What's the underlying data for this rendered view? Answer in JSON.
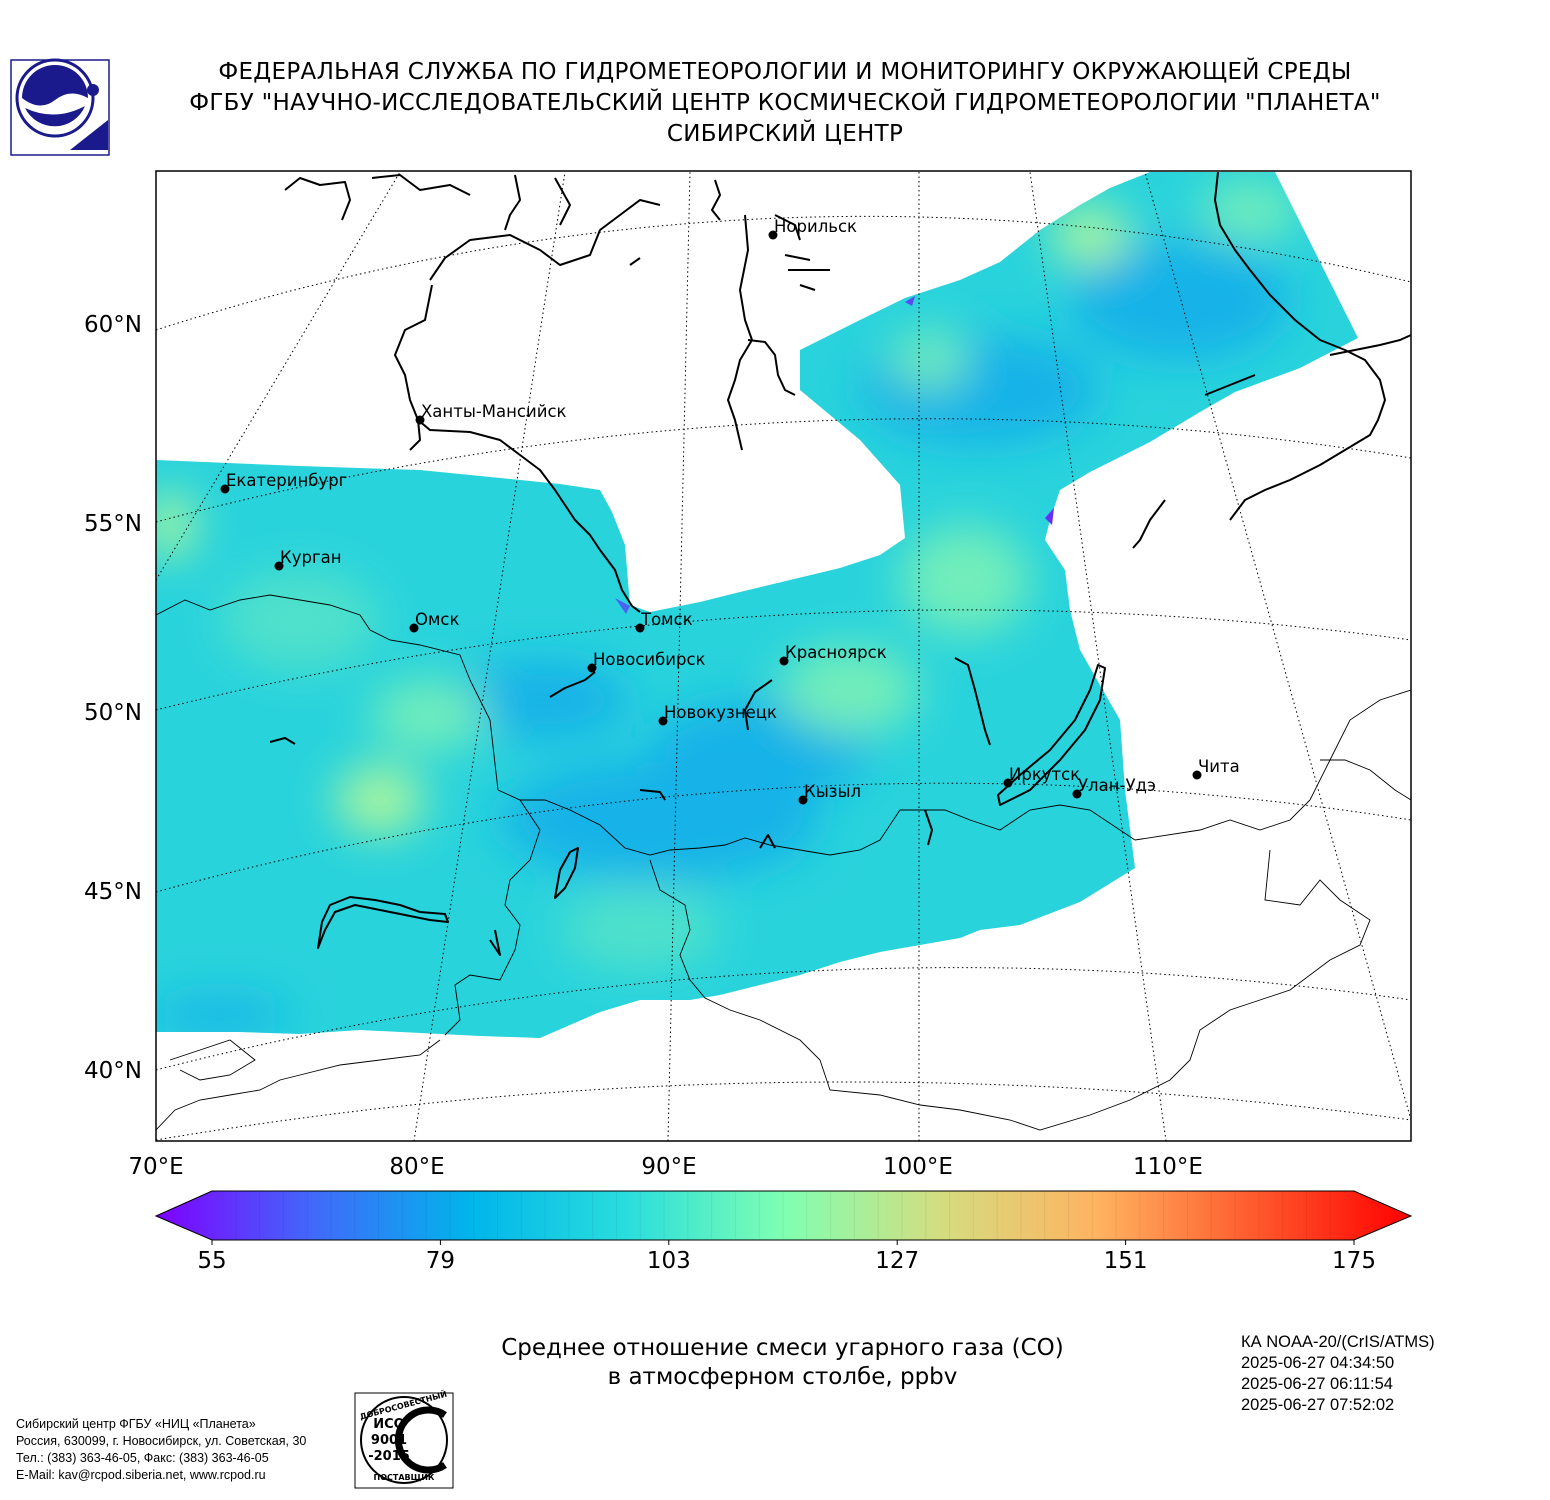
{
  "header": {
    "line1": "ФЕДЕРАЛЬНАЯ СЛУЖБА ПО ГИДРОМЕТЕОРОЛОГИИ И МОНИТОРИНГУ ОКРУЖАЮЩЕЙ СРЕДЫ",
    "line2": "ФГБУ \"НАУЧНО-ИССЛЕДОВАТЕЛЬСКИЙ ЦЕНТР КОСМИЧЕСКОЙ ГИДРОМЕТЕОРОЛОГИИ \"ПЛАНЕТА\"",
    "line3": "СИБИРСКИЙ ЦЕНТР",
    "logo_icon": "planeta-logo-icon"
  },
  "map": {
    "lat_labels": [
      "60°N",
      "55°N",
      "50°N",
      "45°N",
      "40°N"
    ],
    "lon_labels": [
      "70°E",
      "80°E",
      "90°E",
      "100°E",
      "110°E"
    ],
    "cities": [
      {
        "name": "Норильск"
      },
      {
        "name": "Ханты-Мансийск"
      },
      {
        "name": "Екатеринбург"
      },
      {
        "name": "Курган"
      },
      {
        "name": "Омск"
      },
      {
        "name": "Томск"
      },
      {
        "name": "Новосибирск"
      },
      {
        "name": "Красноярск"
      },
      {
        "name": "Новокузнецк"
      },
      {
        "name": "Иркутск"
      },
      {
        "name": "Улан-Удэ"
      },
      {
        "name": "Чита"
      },
      {
        "name": "Кызыл"
      }
    ],
    "colors": {
      "field_base": "#29d3dc",
      "field_dark": "#12b2e8",
      "field_light": "#7ff2b5",
      "field_bright": "#a6f5a0"
    }
  },
  "colorbar": {
    "ticks": [
      "55",
      "79",
      "103",
      "127",
      "151",
      "175"
    ],
    "min": 55,
    "max": 175,
    "colors": [
      "#7f00ff",
      "#4169fa",
      "#00b5eb",
      "#2adddd",
      "#7fffb2",
      "#d4dd80",
      "#ffb360",
      "#ff5a2d",
      "#ff0000"
    ]
  },
  "caption": {
    "line1": "Среднее отношение смеси угарного газа (CO)",
    "line2": "в атмосферном столбе, ppbv"
  },
  "satellite": {
    "name": "КА NOAA-20/(CrIS/ATMS)",
    "times": [
      "2025-06-27 04:34:50",
      "2025-06-27 06:11:54",
      "2025-06-27 07:52:02"
    ]
  },
  "footer": {
    "lines": [
      "Сибирский центр ФГБУ «НИЦ «Планета»",
      "Россия, 630099, г. Новосибирск, ул. Советская, 30",
      "Тел.: (383) 363-46-05, Факс: (383) 363-46-05",
      "E-Mail: kav@rcpod.siberia.net, www.rcpod.ru"
    ],
    "iso": {
      "top": "ДОБРОСОВЕСТНЫЙ",
      "l1": "ИСО",
      "l2": "9001",
      "l3": "-2015",
      "bottom": "ПОСТАВЩИК"
    }
  }
}
